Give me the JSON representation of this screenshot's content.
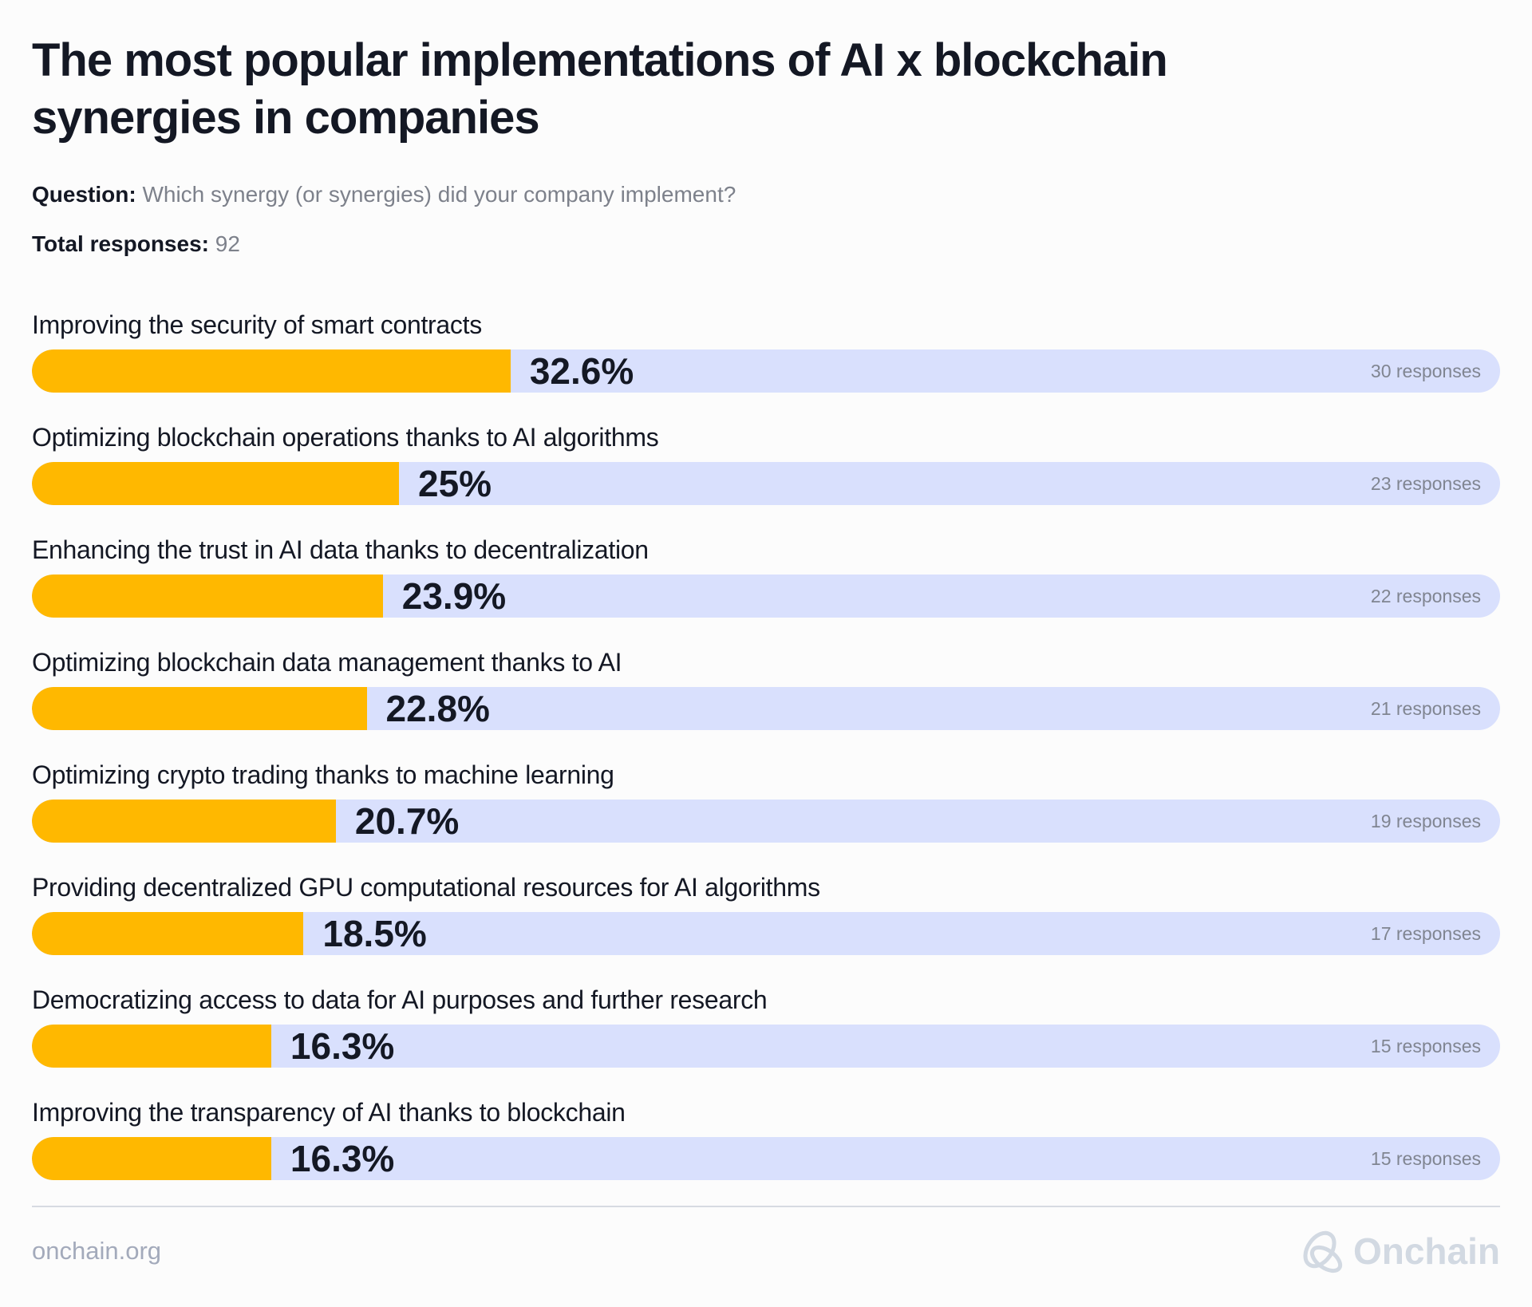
{
  "header": {
    "title": "The most popular implementations of AI x blockchain synergies in companies",
    "question_label": "Question:",
    "question_text": "Which synergy (or synergies) did your company implement?",
    "total_label": "Total responses:",
    "total_value": "92"
  },
  "colors": {
    "fill": "#ffb800",
    "track": "#d9e0fd",
    "background": "#fcfcfc"
  },
  "chart_data": {
    "type": "bar",
    "orientation": "horizontal",
    "title": "The most popular implementations of AI x blockchain synergies in companies",
    "xlim": [
      0,
      100
    ],
    "categories": [
      "Improving the security of smart contracts",
      "Optimizing blockchain operations thanks to AI algorithms",
      "Enhancing the trust in AI data thanks to decentralization",
      "Optimizing blockchain data management thanks to AI",
      "Optimizing crypto trading thanks to machine learning",
      "Providing decentralized GPU computational resources for AI algorithms",
      "Democratizing access to data for AI purposes and further research",
      "Improving the transparency of AI thanks to blockchain"
    ],
    "values": [
      32.6,
      25,
      23.9,
      22.8,
      20.7,
      18.5,
      16.3,
      16.3
    ],
    "value_labels": [
      "32.6%",
      "25%",
      "23.9%",
      "22.8%",
      "20.7%",
      "18.5%",
      "16.3%",
      "16.3%"
    ],
    "responses": [
      "30 responses",
      "23 responses",
      "22 responses",
      "21 responses",
      "19 responses",
      "17 responses",
      "15 responses",
      "15 responses"
    ]
  },
  "footer": {
    "url": "onchain.org",
    "logo_text": "Onchain",
    "logo_icon": "onchain-knot-logo"
  }
}
